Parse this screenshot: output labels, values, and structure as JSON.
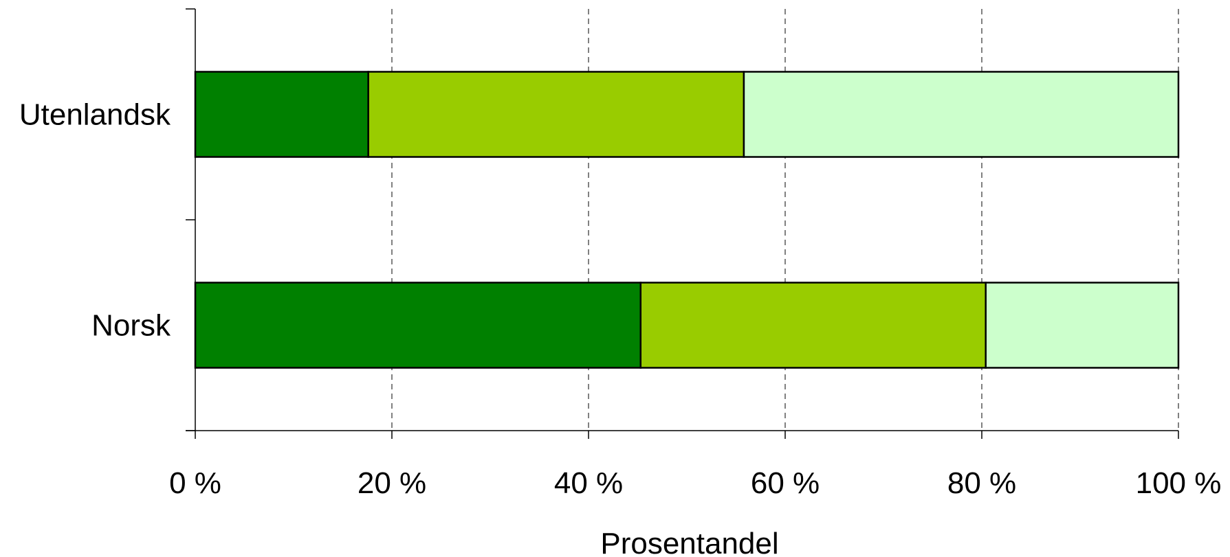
{
  "chart_data": {
    "type": "bar",
    "orientation": "horizontal",
    "stacked": "percent",
    "categories": [
      "Utenlandsk",
      "Norsk"
    ],
    "series": [
      {
        "values": [
          17.6,
          45.3
        ],
        "color": "#008000"
      },
      {
        "values": [
          38.2,
          35.1
        ],
        "color": "#99CC00"
      },
      {
        "values": [
          44.2,
          19.6
        ],
        "color": "#CCFFCC"
      }
    ],
    "xlabel": "Prosentandel",
    "ylabel": "",
    "xlim": [
      0,
      100
    ],
    "xticks": [
      0,
      20,
      40,
      60,
      80,
      100
    ],
    "xtick_labels": [
      "0 %",
      "20 %",
      "40 %",
      "60 %",
      "80 %",
      "100 %"
    ],
    "grid": "vertical dashed",
    "legend": "none"
  }
}
